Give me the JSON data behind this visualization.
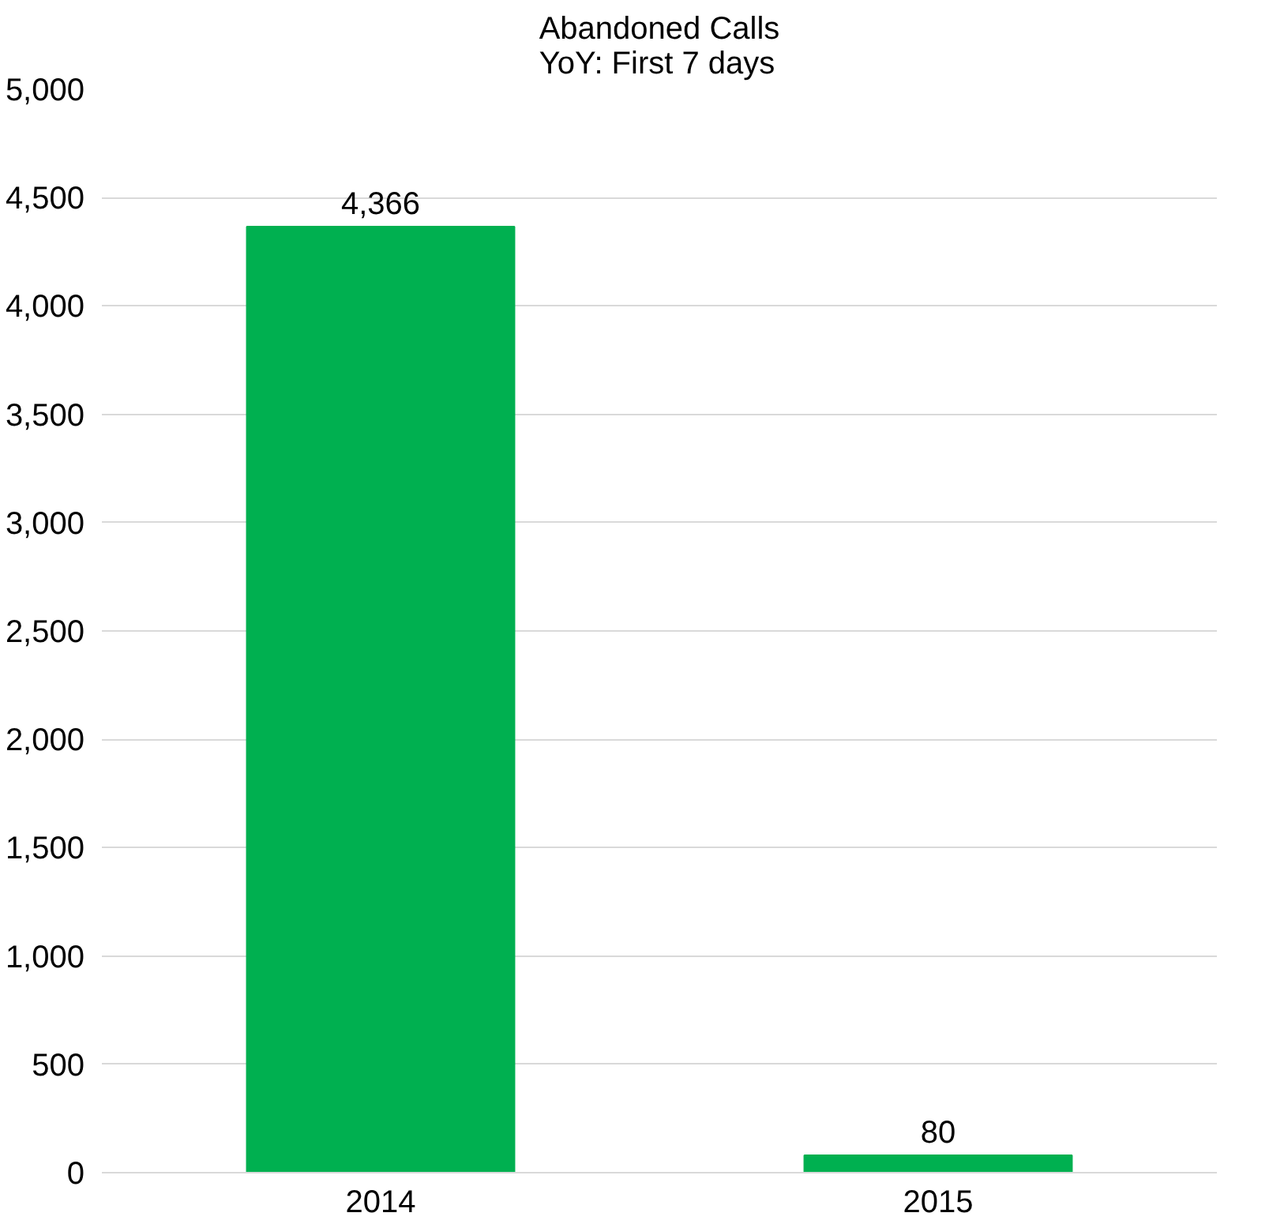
{
  "chart_data": {
    "type": "bar",
    "title": "Abandoned Calls",
    "subtitle": "YoY: First 7 days",
    "categories": [
      "2014",
      "2015"
    ],
    "values": [
      4366,
      80
    ],
    "color": "#00b050",
    "ylim": [
      0,
      5000
    ],
    "yticks": [
      {
        "value": 0,
        "label": "0"
      },
      {
        "value": 500,
        "label": "500"
      },
      {
        "value": 1000,
        "label": "1,000"
      },
      {
        "value": 1500,
        "label": "1,500"
      },
      {
        "value": 2000,
        "label": "2,000"
      },
      {
        "value": 2500,
        "label": "2,500"
      },
      {
        "value": 3000,
        "label": "3,000"
      },
      {
        "value": 3500,
        "label": "3,500"
      },
      {
        "value": 4000,
        "label": "4,000"
      },
      {
        "value": 4500,
        "label": "4,500"
      },
      {
        "value": 5000,
        "label": "5,000"
      }
    ],
    "grid": "y",
    "value_labels": [
      "4,366",
      "80"
    ]
  }
}
